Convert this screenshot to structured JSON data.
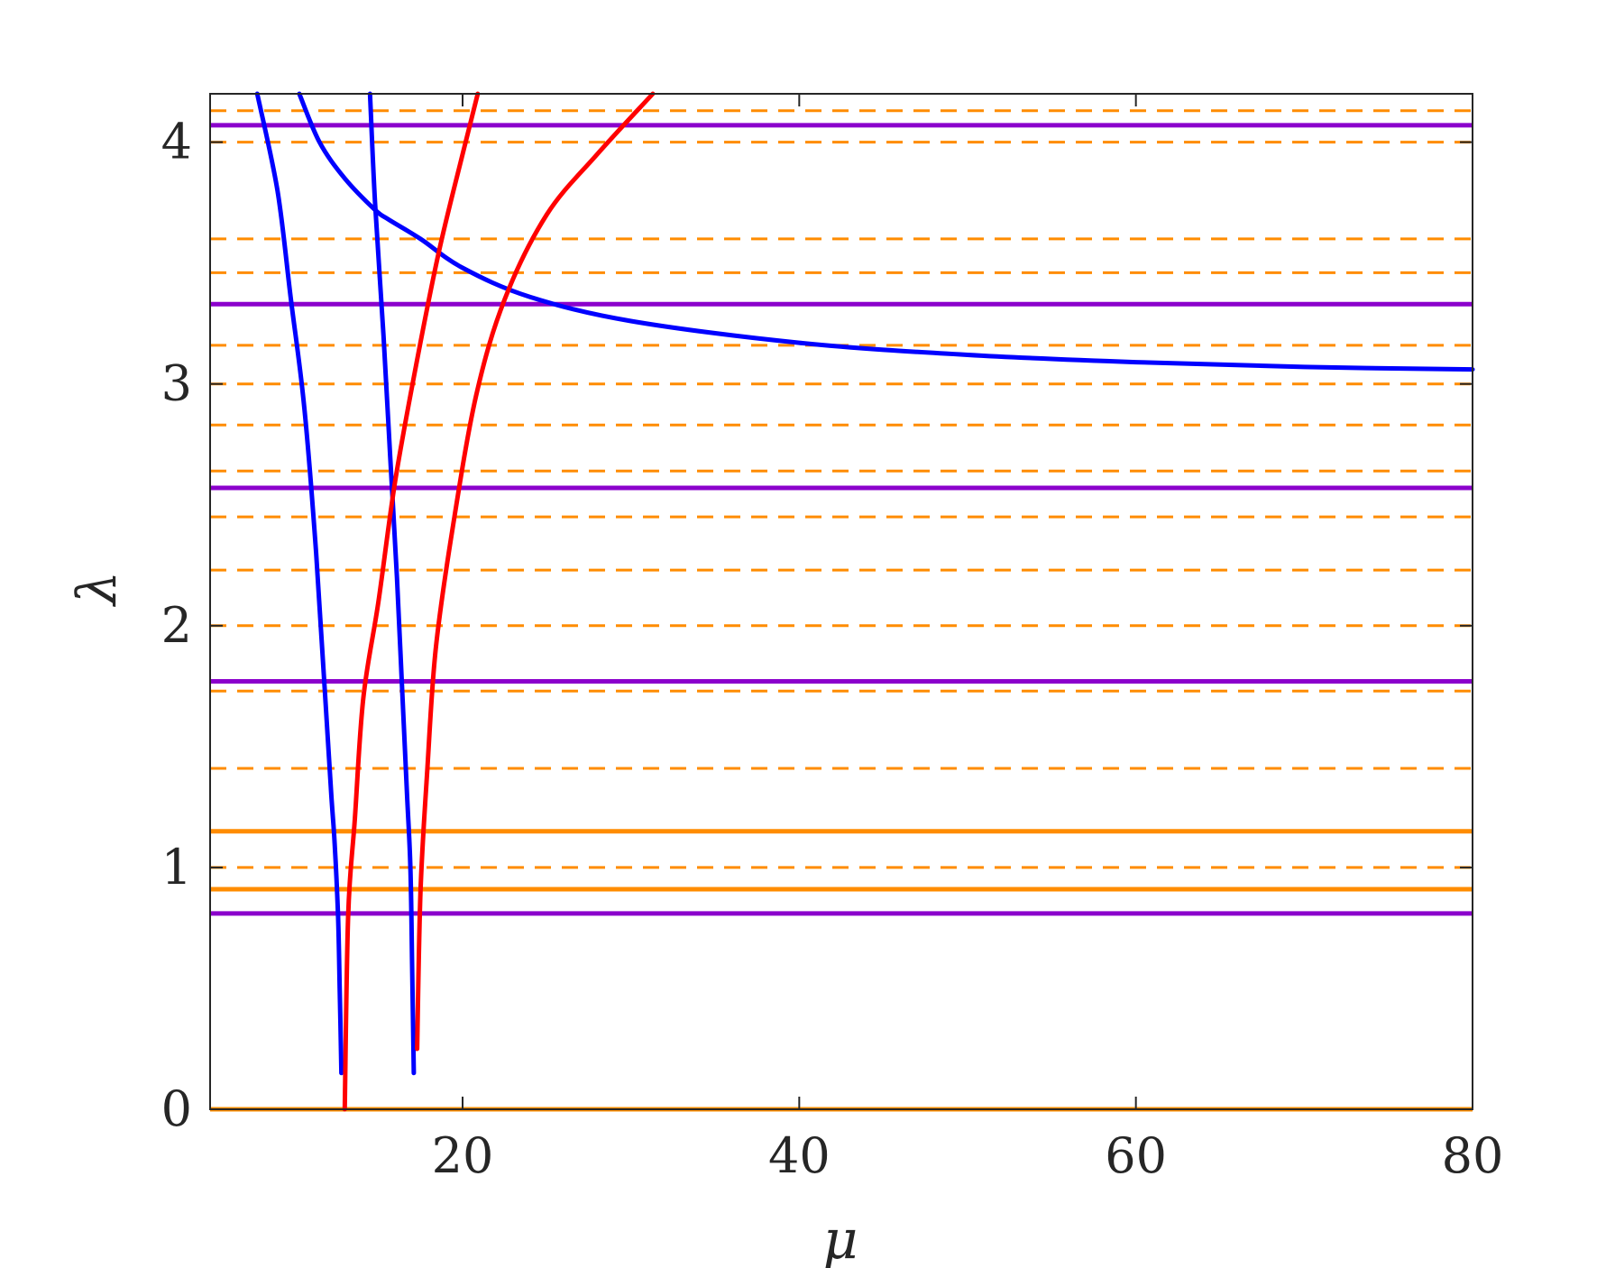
{
  "chart_data": {
    "type": "line",
    "title": "",
    "xlabel": "μ",
    "ylabel": "λ",
    "xlim": [
      5,
      80
    ],
    "ylim": [
      0,
      4.2
    ],
    "xticks": [
      "20",
      "40",
      "60",
      "80"
    ],
    "yticks": [
      "0",
      "1",
      "2",
      "3",
      "4"
    ],
    "grid": false,
    "legend": "none",
    "colors": {
      "purple": "#8B00CC",
      "orange": "#FF8C00",
      "red": "#FF0000",
      "blue": "#0000FF",
      "axis": "#262626"
    },
    "horizontal_lines": {
      "purple_solid": [
        4.07,
        3.33,
        2.57,
        1.77,
        0.81
      ],
      "orange_solid": [
        1.15,
        0.91,
        0.0
      ],
      "orange_dashed": [
        4.13,
        4.0,
        3.6,
        3.46,
        3.16,
        3.0,
        2.83,
        2.64,
        2.45,
        2.23,
        2.0,
        1.73,
        1.41,
        1.0
      ]
    },
    "curves": [
      {
        "color": "blue",
        "x": [
          7.8,
          9.0,
          9.8,
          10.6,
          11.3,
          11.8,
          12.2,
          12.4,
          12.6,
          12.7,
          12.8
        ],
        "y": [
          4.2,
          3.8,
          3.35,
          2.9,
          2.3,
          1.75,
          1.3,
          1.1,
          0.8,
          0.5,
          0.15
        ]
      },
      {
        "color": "blue",
        "x": [
          14.5,
          14.8,
          15.3,
          15.7,
          16.1,
          16.4,
          16.7,
          16.9,
          17.0,
          17.1
        ],
        "y": [
          4.2,
          3.75,
          3.2,
          2.7,
          2.2,
          1.75,
          1.3,
          1.0,
          0.6,
          0.15
        ]
      },
      {
        "color": "blue",
        "x": [
          10.3,
          11.5,
          13.0,
          14.8,
          15.6,
          17.5,
          20.0,
          24.0,
          30.0,
          40.0,
          50.0,
          60.0,
          70.0,
          80.0
        ],
        "y": [
          4.2,
          4.0,
          3.85,
          3.72,
          3.68,
          3.6,
          3.48,
          3.36,
          3.26,
          3.17,
          3.12,
          3.09,
          3.07,
          3.06
        ]
      },
      {
        "color": "red",
        "x": [
          13.0,
          13.2,
          13.6,
          14.1,
          15.0,
          16.0,
          17.3,
          18.6,
          20.0,
          20.9
        ],
        "y": [
          0.0,
          0.8,
          1.2,
          1.7,
          2.1,
          2.6,
          3.1,
          3.55,
          3.95,
          4.2
        ]
      },
      {
        "color": "red",
        "x": [
          17.3,
          17.5,
          17.9,
          18.4,
          19.4,
          20.8,
          22.5,
          25.0,
          28.0,
          31.3
        ],
        "y": [
          0.25,
          0.9,
          1.4,
          1.9,
          2.4,
          2.95,
          3.35,
          3.7,
          3.95,
          4.2
        ]
      }
    ]
  }
}
